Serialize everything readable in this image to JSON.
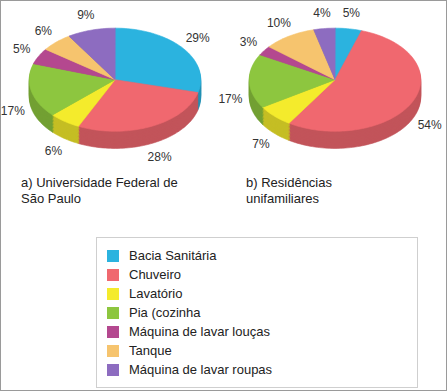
{
  "chart_data": [
    {
      "type": "pie",
      "title": "a) Universidade Federal de São Paulo",
      "categories": [
        "Bacia Sanitária",
        "Chuveiro",
        "Lavatório",
        "Pia (cozinha",
        "Máquina de lavar louças",
        "Tanque",
        "Máquina de lavar roupas"
      ],
      "values": [
        29,
        28,
        6,
        17,
        5,
        6,
        9
      ],
      "value_labels": [
        "29%",
        "28%",
        "6%",
        "17%",
        "5%",
        "6%",
        "9%"
      ],
      "colors": [
        "#2bb3df",
        "#f0686f",
        "#f4eb2c",
        "#8dc63f",
        "#b4488f",
        "#f6c46e",
        "#8d6cc0"
      ],
      "data_labels": true,
      "legend": "bottom"
    },
    {
      "type": "pie",
      "title": "b) Residências unifamiliares",
      "categories": [
        "Bacia Sanitária",
        "Chuveiro",
        "Lavatório",
        "Pia (cozinha",
        "Máquina de lavar louças",
        "Tanque",
        "Máquina de lavar roupas"
      ],
      "values": [
        5,
        54,
        7,
        17,
        3,
        10,
        4
      ],
      "value_labels": [
        "5%",
        "54%",
        "7%",
        "17%",
        "3%",
        "10%",
        "4%"
      ],
      "colors": [
        "#2bb3df",
        "#f0686f",
        "#f4eb2c",
        "#8dc63f",
        "#b4488f",
        "#f6c46e",
        "#8d6cc0"
      ],
      "data_labels": true
    }
  ]
}
